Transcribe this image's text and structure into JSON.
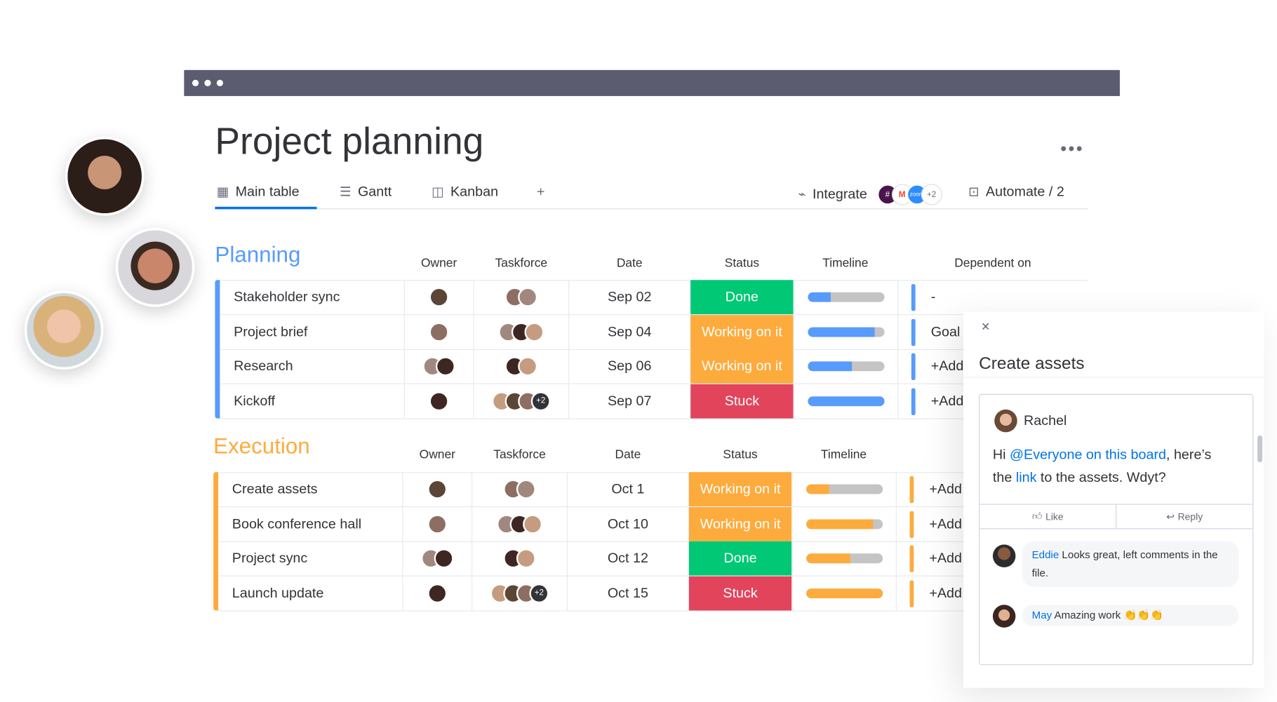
{
  "page": {
    "title": "Project planning",
    "more_icon": "more-horizontal-icon"
  },
  "tabs": [
    {
      "label": "Main table",
      "icon": "table-icon",
      "active": true
    },
    {
      "label": "Gantt",
      "icon": "gantt-icon"
    },
    {
      "label": "Kanban",
      "icon": "kanban-icon"
    }
  ],
  "add_tab": "+",
  "toolbar": {
    "integrate": "Integrate",
    "integrations": [
      "slack",
      "gmail",
      "zoom"
    ],
    "integrations_more": "+2",
    "automate": "Automate / 2"
  },
  "columns": [
    "Owner",
    "Taskforce",
    "Date",
    "Status",
    "Timeline",
    "Dependent on"
  ],
  "colors": {
    "done": "#00c875",
    "working": "#fdab3d",
    "stuck": "#e2445c",
    "planning": "#579bfc",
    "execution": "#fdab3d",
    "accent": "#0073ea"
  },
  "groups": [
    {
      "name": "Planning",
      "color": "#579bfc",
      "rows": [
        {
          "task": "Stakeholder sync",
          "date": "Sep 02",
          "status": "Done",
          "status_color": "#00c875",
          "timeline": 0.3,
          "dependent": "-",
          "taskforce_extra": ""
        },
        {
          "task": "Project brief",
          "date": "Sep 04",
          "status": "Working on it",
          "status_color": "#fdab3d",
          "timeline": 0.88,
          "dependent": "Goal",
          "taskforce_extra": ""
        },
        {
          "task": "Research",
          "date": "Sep 06",
          "status": "Working on it",
          "status_color": "#fdab3d",
          "timeline": 0.58,
          "dependent": "+Add",
          "taskforce_extra": ""
        },
        {
          "task": "Kickoff",
          "date": "Sep 07",
          "status": "Stuck",
          "status_color": "#e2445c",
          "timeline": 1.0,
          "dependent": "+Add",
          "taskforce_extra": "+2"
        }
      ]
    },
    {
      "name": "Execution",
      "color": "#fdab3d",
      "rows": [
        {
          "task": "Create assets",
          "date": "Oct 1",
          "status": "Working on it",
          "status_color": "#fdab3d",
          "timeline": 0.3,
          "dependent": "+Add",
          "taskforce_extra": ""
        },
        {
          "task": "Book conference hall",
          "date": "Oct 10",
          "status": "Working on it",
          "status_color": "#fdab3d",
          "timeline": 0.88,
          "dependent": "+Add",
          "taskforce_extra": ""
        },
        {
          "task": "Project sync",
          "date": "Oct 12",
          "status": "Done",
          "status_color": "#00c875",
          "timeline": 0.58,
          "dependent": "+Add",
          "taskforce_extra": ""
        },
        {
          "task": "Launch update",
          "date": "Oct 15",
          "status": "Stuck",
          "status_color": "#e2445c",
          "timeline": 1.0,
          "dependent": "+Add",
          "taskforce_extra": "+2"
        }
      ]
    }
  ],
  "panel": {
    "title": "Create assets",
    "post": {
      "author": "Rachel",
      "text_1": "Hi ",
      "mention": "@Everyone on this board",
      "text_2": ", here’s",
      "text_3": "the ",
      "link": "link",
      "text_4": " to the assets. Wdyt?"
    },
    "like": "Like",
    "reply": "Reply",
    "comments": [
      {
        "author": "Eddie",
        "text": "Looks great, left comments in the file."
      },
      {
        "author": "May",
        "text": "Amazing work 👏👏👏"
      }
    ]
  }
}
